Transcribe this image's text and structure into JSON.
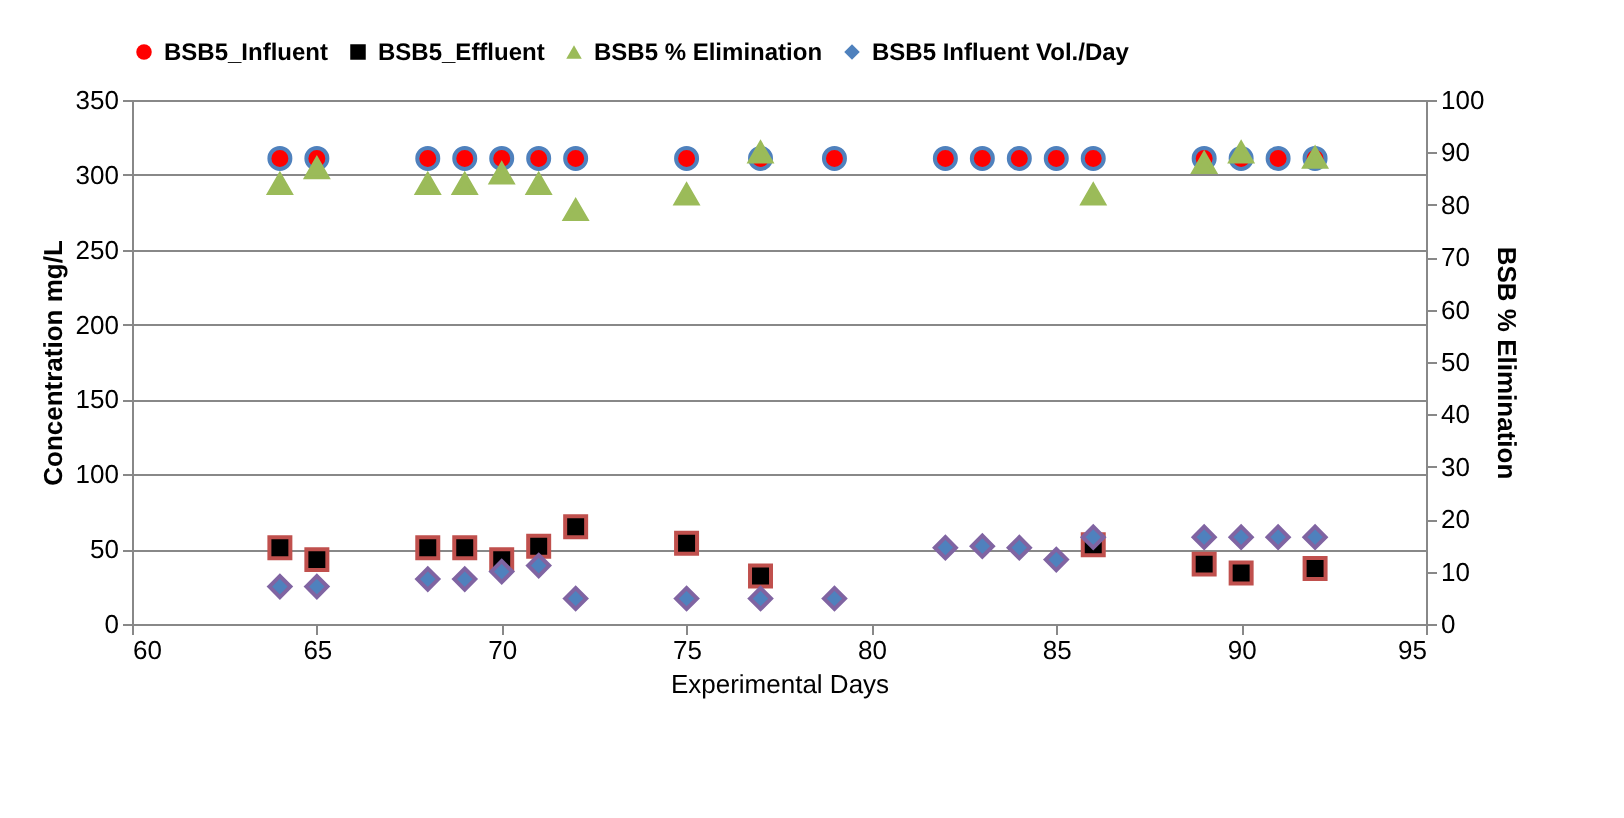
{
  "chart_data": {
    "type": "scatter",
    "xlabel": "Experimental Days",
    "ylabel": "Concentration mg/L",
    "y2label": "BSB % Elimination",
    "xlim": [
      60,
      95
    ],
    "xticks": [
      60,
      65,
      70,
      75,
      80,
      85,
      90,
      95
    ],
    "ylim": [
      0,
      350
    ],
    "yticks": [
      0,
      50,
      100,
      150,
      200,
      250,
      300,
      350
    ],
    "y2lim": [
      0,
      100
    ],
    "y2ticks": [
      0,
      10,
      20,
      30,
      40,
      50,
      60,
      70,
      80,
      90,
      100
    ],
    "grid": "y",
    "legend": "top",
    "series": [
      {
        "name": "BSB5_Influent",
        "color": "#ff0000",
        "marker": "circle",
        "x": [
          64,
          65,
          68,
          69,
          70,
          71,
          72,
          75,
          77,
          79,
          82,
          83,
          84,
          85,
          86,
          89,
          90,
          91,
          92
        ],
        "values": [
          311,
          311,
          311,
          311,
          311,
          311,
          311,
          311,
          311,
          311,
          311,
          311,
          311,
          311,
          311,
          311,
          311,
          311,
          311
        ]
      },
      {
        "name": "BSB5_Effluent",
        "color": "#000000",
        "marker": "square",
        "x": [
          64,
          65,
          68,
          69,
          70,
          71,
          72,
          75,
          77,
          86,
          89,
          90,
          92
        ],
        "values": [
          51,
          43,
          51,
          51,
          43,
          52,
          65,
          54,
          32,
          53,
          40,
          34,
          37
        ]
      },
      {
        "name": "BSB5 % Elimination",
        "color": "#9bbb59",
        "marker": "triangle",
        "axis": "y2",
        "x": [
          64,
          65,
          68,
          69,
          70,
          71,
          72,
          75,
          77,
          86,
          89,
          90,
          92
        ],
        "values": [
          84,
          87,
          84,
          84,
          86,
          84,
          79,
          82,
          90,
          82,
          88,
          90,
          89
        ]
      },
      {
        "name": "BSB5 Influent Vol./Day",
        "color": "#4f81bd",
        "marker": "diamond",
        "x": [
          64,
          65,
          68,
          69,
          70,
          71,
          72,
          75,
          77,
          79,
          82,
          83,
          84,
          85,
          86,
          89,
          90,
          91,
          92
        ],
        "values": [
          25,
          25,
          30,
          30,
          35,
          39,
          17,
          17,
          17,
          17,
          51,
          52,
          51,
          43,
          58,
          58,
          58,
          58,
          58
        ]
      }
    ]
  }
}
